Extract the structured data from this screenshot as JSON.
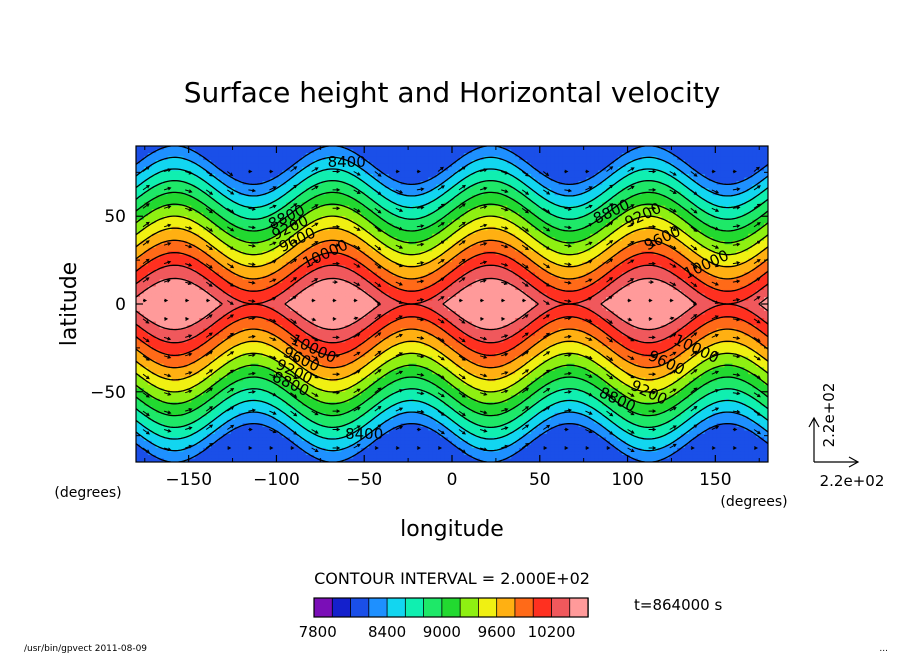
{
  "chart_data": {
    "type": "contour",
    "title": "Surface height and Horizontal velocity",
    "xlabel": "longitude",
    "ylabel": "latitude",
    "x_unit_label": "(degrees)",
    "y_unit_label": "(degrees)",
    "xlim": [
      -180,
      180
    ],
    "ylim": [
      -90,
      90
    ],
    "x_ticks": [
      -150,
      -100,
      -50,
      0,
      50,
      100,
      150
    ],
    "y_ticks": [
      -50,
      0,
      50
    ],
    "x_tick_labels": [
      "−150",
      "−100",
      "−50",
      "0",
      "50",
      "100",
      "150"
    ],
    "y_tick_labels": [
      "−50",
      "0",
      "50"
    ],
    "contour_interval_text": "CONTOUR INTERVAL = 2.000E+02",
    "time_text": "t=864000 s",
    "levels": [
      7800,
      8000,
      8200,
      8400,
      8600,
      8800,
      9000,
      9200,
      9400,
      9600,
      9800,
      10000,
      10200,
      10400
    ],
    "colorbar": {
      "tick_values": [
        7800,
        8400,
        9000,
        9600,
        10200
      ],
      "tick_labels": [
        "7800",
        "8400",
        "9000",
        "9600",
        "10200"
      ],
      "colors": [
        "#7a0eb7",
        "#1420cc",
        "#1a4fe8",
        "#1e90ff",
        "#12d6f0",
        "#10efb0",
        "#1ee868",
        "#22d930",
        "#8ef012",
        "#f0f012",
        "#ffb012",
        "#ff6a18",
        "#ff3020",
        "#f0585c",
        "#ff9a9a"
      ]
    },
    "contour_labels": [
      {
        "text": "8400",
        "lon": -60,
        "lat": 78
      },
      {
        "text": "8400",
        "lon": -50,
        "lat": -77
      },
      {
        "text": "8800",
        "lon": -93,
        "lat": 47
      },
      {
        "text": "9200",
        "lon": -91,
        "lat": 41
      },
      {
        "text": "9600",
        "lon": -87,
        "lat": 34
      },
      {
        "text": "10000",
        "lon": -71,
        "lat": 26
      },
      {
        "text": "10000",
        "lon": -80,
        "lat": -28
      },
      {
        "text": "9600",
        "lon": -87,
        "lat": -34
      },
      {
        "text": "9200",
        "lon": -91,
        "lat": -41
      },
      {
        "text": "8800",
        "lon": -93,
        "lat": -48
      },
      {
        "text": "8800",
        "lon": 92,
        "lat": 50
      },
      {
        "text": "9200",
        "lon": 110,
        "lat": 48
      },
      {
        "text": "9600",
        "lon": 121,
        "lat": 35
      },
      {
        "text": "10000",
        "lon": 146,
        "lat": 20
      },
      {
        "text": "10000",
        "lon": 138,
        "lat": -28
      },
      {
        "text": "9600",
        "lon": 121,
        "lat": -36
      },
      {
        "text": "9200",
        "lon": 111,
        "lat": -53
      },
      {
        "text": "8800",
        "lon": 93,
        "lat": -57
      }
    ],
    "vector_reference": {
      "x_label": "2.2e+02",
      "y_label": "2.2e+02"
    },
    "field_model": {
      "wavenumber": 4,
      "phase_lon": 22,
      "description_free": true
    }
  },
  "footer": {
    "left": "/usr/bin/gpvect  2011-08-09",
    "right": "..."
  }
}
